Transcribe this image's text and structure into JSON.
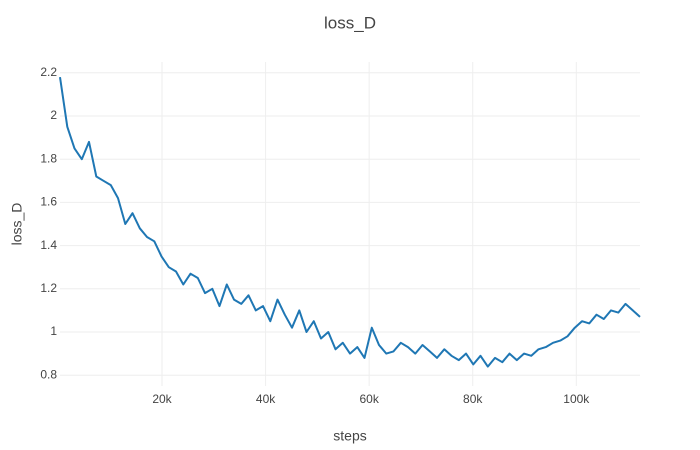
{
  "chart_data": {
    "type": "line",
    "title": "loss_D",
    "x_label": "steps",
    "y_label": "loss_D",
    "color": "#1f77b4",
    "grid": true,
    "x": [
      300,
      1700,
      3100,
      4500,
      5900,
      7300,
      8700,
      10100,
      11500,
      12900,
      14300,
      15700,
      17100,
      18500,
      19900,
      21300,
      22700,
      24100,
      25500,
      26900,
      28300,
      29700,
      31100,
      32500,
      33900,
      35300,
      36700,
      38100,
      39500,
      40900,
      42300,
      43700,
      45100,
      46500,
      47900,
      49300,
      50700,
      52100,
      53500,
      54900,
      56300,
      57700,
      59100,
      60500,
      61900,
      63300,
      64700,
      66100,
      67500,
      68900,
      70300,
      71700,
      73100,
      74500,
      75900,
      77300,
      78700,
      80100,
      81500,
      82900,
      84300,
      85700,
      87100,
      88500,
      89900,
      91300,
      92700,
      94100,
      95500,
      96900,
      98300,
      99700,
      101100,
      102500,
      103900,
      105300,
      106700,
      108100,
      109500,
      110900,
      112300
    ],
    "values": [
      2.18,
      1.95,
      1.85,
      1.8,
      1.88,
      1.72,
      1.7,
      1.68,
      1.62,
      1.5,
      1.55,
      1.48,
      1.44,
      1.42,
      1.35,
      1.3,
      1.28,
      1.22,
      1.27,
      1.25,
      1.18,
      1.2,
      1.12,
      1.22,
      1.15,
      1.13,
      1.17,
      1.1,
      1.12,
      1.05,
      1.15,
      1.08,
      1.02,
      1.1,
      1.0,
      1.05,
      0.97,
      1.0,
      0.92,
      0.95,
      0.9,
      0.93,
      0.88,
      1.02,
      0.94,
      0.9,
      0.91,
      0.95,
      0.93,
      0.9,
      0.94,
      0.91,
      0.88,
      0.92,
      0.89,
      0.87,
      0.9,
      0.85,
      0.89,
      0.84,
      0.88,
      0.86,
      0.9,
      0.87,
      0.9,
      0.89,
      0.92,
      0.93,
      0.95,
      0.96,
      0.98,
      1.02,
      1.05,
      1.04,
      1.08,
      1.06,
      1.1,
      1.09,
      1.13,
      1.1,
      1.07
    ],
    "xlim": [
      300,
      112300
    ],
    "ylim": [
      0.75,
      2.25
    ],
    "xticks": [
      {
        "value": 20000,
        "label": "20k"
      },
      {
        "value": 40000,
        "label": "40k"
      },
      {
        "value": 60000,
        "label": "60k"
      },
      {
        "value": 80000,
        "label": "80k"
      },
      {
        "value": 100000,
        "label": "100k"
      }
    ],
    "yticks": [
      0.8,
      1,
      1.2,
      1.4,
      1.6,
      1.8,
      2,
      2.2
    ]
  }
}
